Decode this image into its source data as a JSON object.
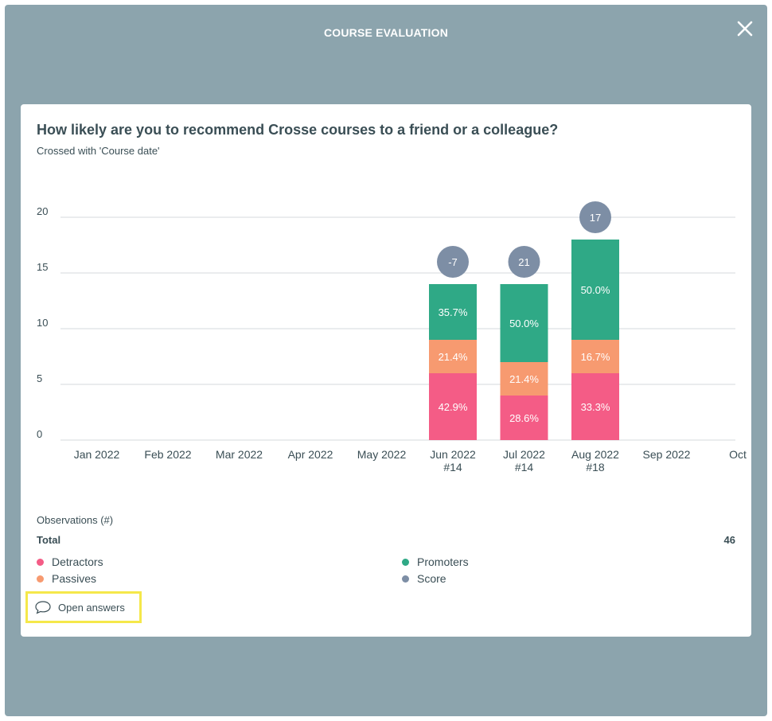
{
  "modal": {
    "title": "COURSE EVALUATION",
    "close_icon": "close-icon"
  },
  "card": {
    "question": "How likely are you to recommend Crosse courses to a friend or a colleague?",
    "subtitle": "Crossed with 'Course date'"
  },
  "summary": {
    "observations_label": "Observations (#)",
    "total_label": "Total",
    "total_value": "46"
  },
  "legend": [
    {
      "label": "Detractors",
      "color": "#f45c86"
    },
    {
      "label": "Promoters",
      "color": "#2fa986"
    },
    {
      "label": "Passives",
      "color": "#f79a70"
    },
    {
      "label": "Score",
      "color": "#7d8ea5"
    }
  ],
  "open_answers": {
    "label": "Open answers",
    "icon": "speech-bubble-icon"
  },
  "chart_data": {
    "type": "bar",
    "stacked": true,
    "categories": [
      "Jan 2022",
      "Feb 2022",
      "Mar 2022",
      "Apr 2022",
      "May 2022",
      "Jun 2022",
      "Jul 2022",
      "Aug 2022",
      "Sep 2022",
      "Oct"
    ],
    "counts": [
      "",
      "",
      "",
      "",
      "",
      "#14",
      "#14",
      "#18",
      "",
      ""
    ],
    "ylim": [
      0,
      20
    ],
    "yticks": [
      0,
      5,
      10,
      15,
      20
    ],
    "grid": true,
    "series": [
      {
        "name": "Detractors",
        "color": "#f45c86",
        "values": [
          0,
          0,
          0,
          0,
          0,
          6,
          4,
          6,
          0,
          0
        ],
        "labels": [
          "",
          "",
          "",
          "",
          "",
          "42.9%",
          "28.6%",
          "33.3%",
          "",
          ""
        ]
      },
      {
        "name": "Passives",
        "color": "#f79a70",
        "values": [
          0,
          0,
          0,
          0,
          0,
          3,
          3,
          3,
          0,
          0
        ],
        "labels": [
          "",
          "",
          "",
          "",
          "",
          "21.4%",
          "21.4%",
          "16.7%",
          "",
          ""
        ]
      },
      {
        "name": "Promoters",
        "color": "#2fa986",
        "values": [
          0,
          0,
          0,
          0,
          0,
          5,
          7,
          9,
          0,
          0
        ],
        "labels": [
          "",
          "",
          "",
          "",
          "",
          "35.7%",
          "50.0%",
          "50.0%",
          "",
          ""
        ]
      }
    ],
    "scores": [
      null,
      null,
      null,
      null,
      null,
      -7,
      21,
      17,
      null,
      null
    ],
    "score_color": "#7d8ea5"
  }
}
